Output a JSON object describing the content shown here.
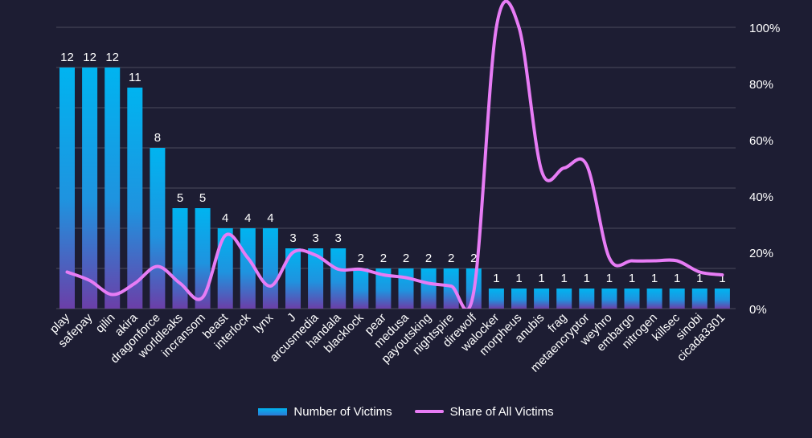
{
  "chart_data": {
    "type": "bar",
    "categories": [
      "play",
      "safepay",
      "qilin",
      "akira",
      "dragonforce",
      "worldleaks",
      "incransom",
      "beast",
      "interlock",
      "lynx",
      "J",
      "arcusmedia",
      "handala",
      "blacklock",
      "pear",
      "medusa",
      "payoutsking",
      "nightspire",
      "direwolf",
      "walocker",
      "morpheus",
      "anubis",
      "frag",
      "metaencryptor",
      "weyhro",
      "embargo",
      "nitrogen",
      "killsec",
      "sinobi",
      "cicada3301"
    ],
    "series": [
      {
        "name": "Number of Victims",
        "type": "bar",
        "axis": "left",
        "values": [
          12,
          12,
          12,
          11,
          8,
          5,
          5,
          4,
          4,
          4,
          3,
          3,
          3,
          2,
          2,
          2,
          2,
          2,
          2,
          1,
          1,
          1,
          1,
          1,
          1,
          1,
          1,
          1,
          1,
          1
        ]
      },
      {
        "name": "Share of All Victims",
        "type": "line",
        "axis": "right",
        "unit": "%",
        "values": [
          13,
          10,
          5,
          9,
          15,
          9,
          4,
          26,
          18,
          8,
          20,
          19,
          14,
          14,
          12,
          11,
          9,
          8,
          6,
          100,
          100,
          49,
          50,
          51,
          18,
          17,
          17,
          17,
          13,
          12
        ]
      }
    ],
    "left_axis": {
      "range": [
        0,
        14
      ],
      "show_ticks": false
    },
    "right_axis": {
      "range": [
        0,
        100
      ],
      "ticks": [
        "0%",
        "20%",
        "40%",
        "60%",
        "80%",
        "100%"
      ]
    },
    "grid": true,
    "legend_position": "bottom",
    "data_labels": true,
    "colors": {
      "background": "#1d1d33",
      "bar_top": "#00b4f0",
      "bar_mid": "#1f93df",
      "bar_bottom": "#6b3fa8",
      "line": "#e77cf5",
      "grid": "#4a4a5e",
      "text": "#ffffff"
    }
  }
}
